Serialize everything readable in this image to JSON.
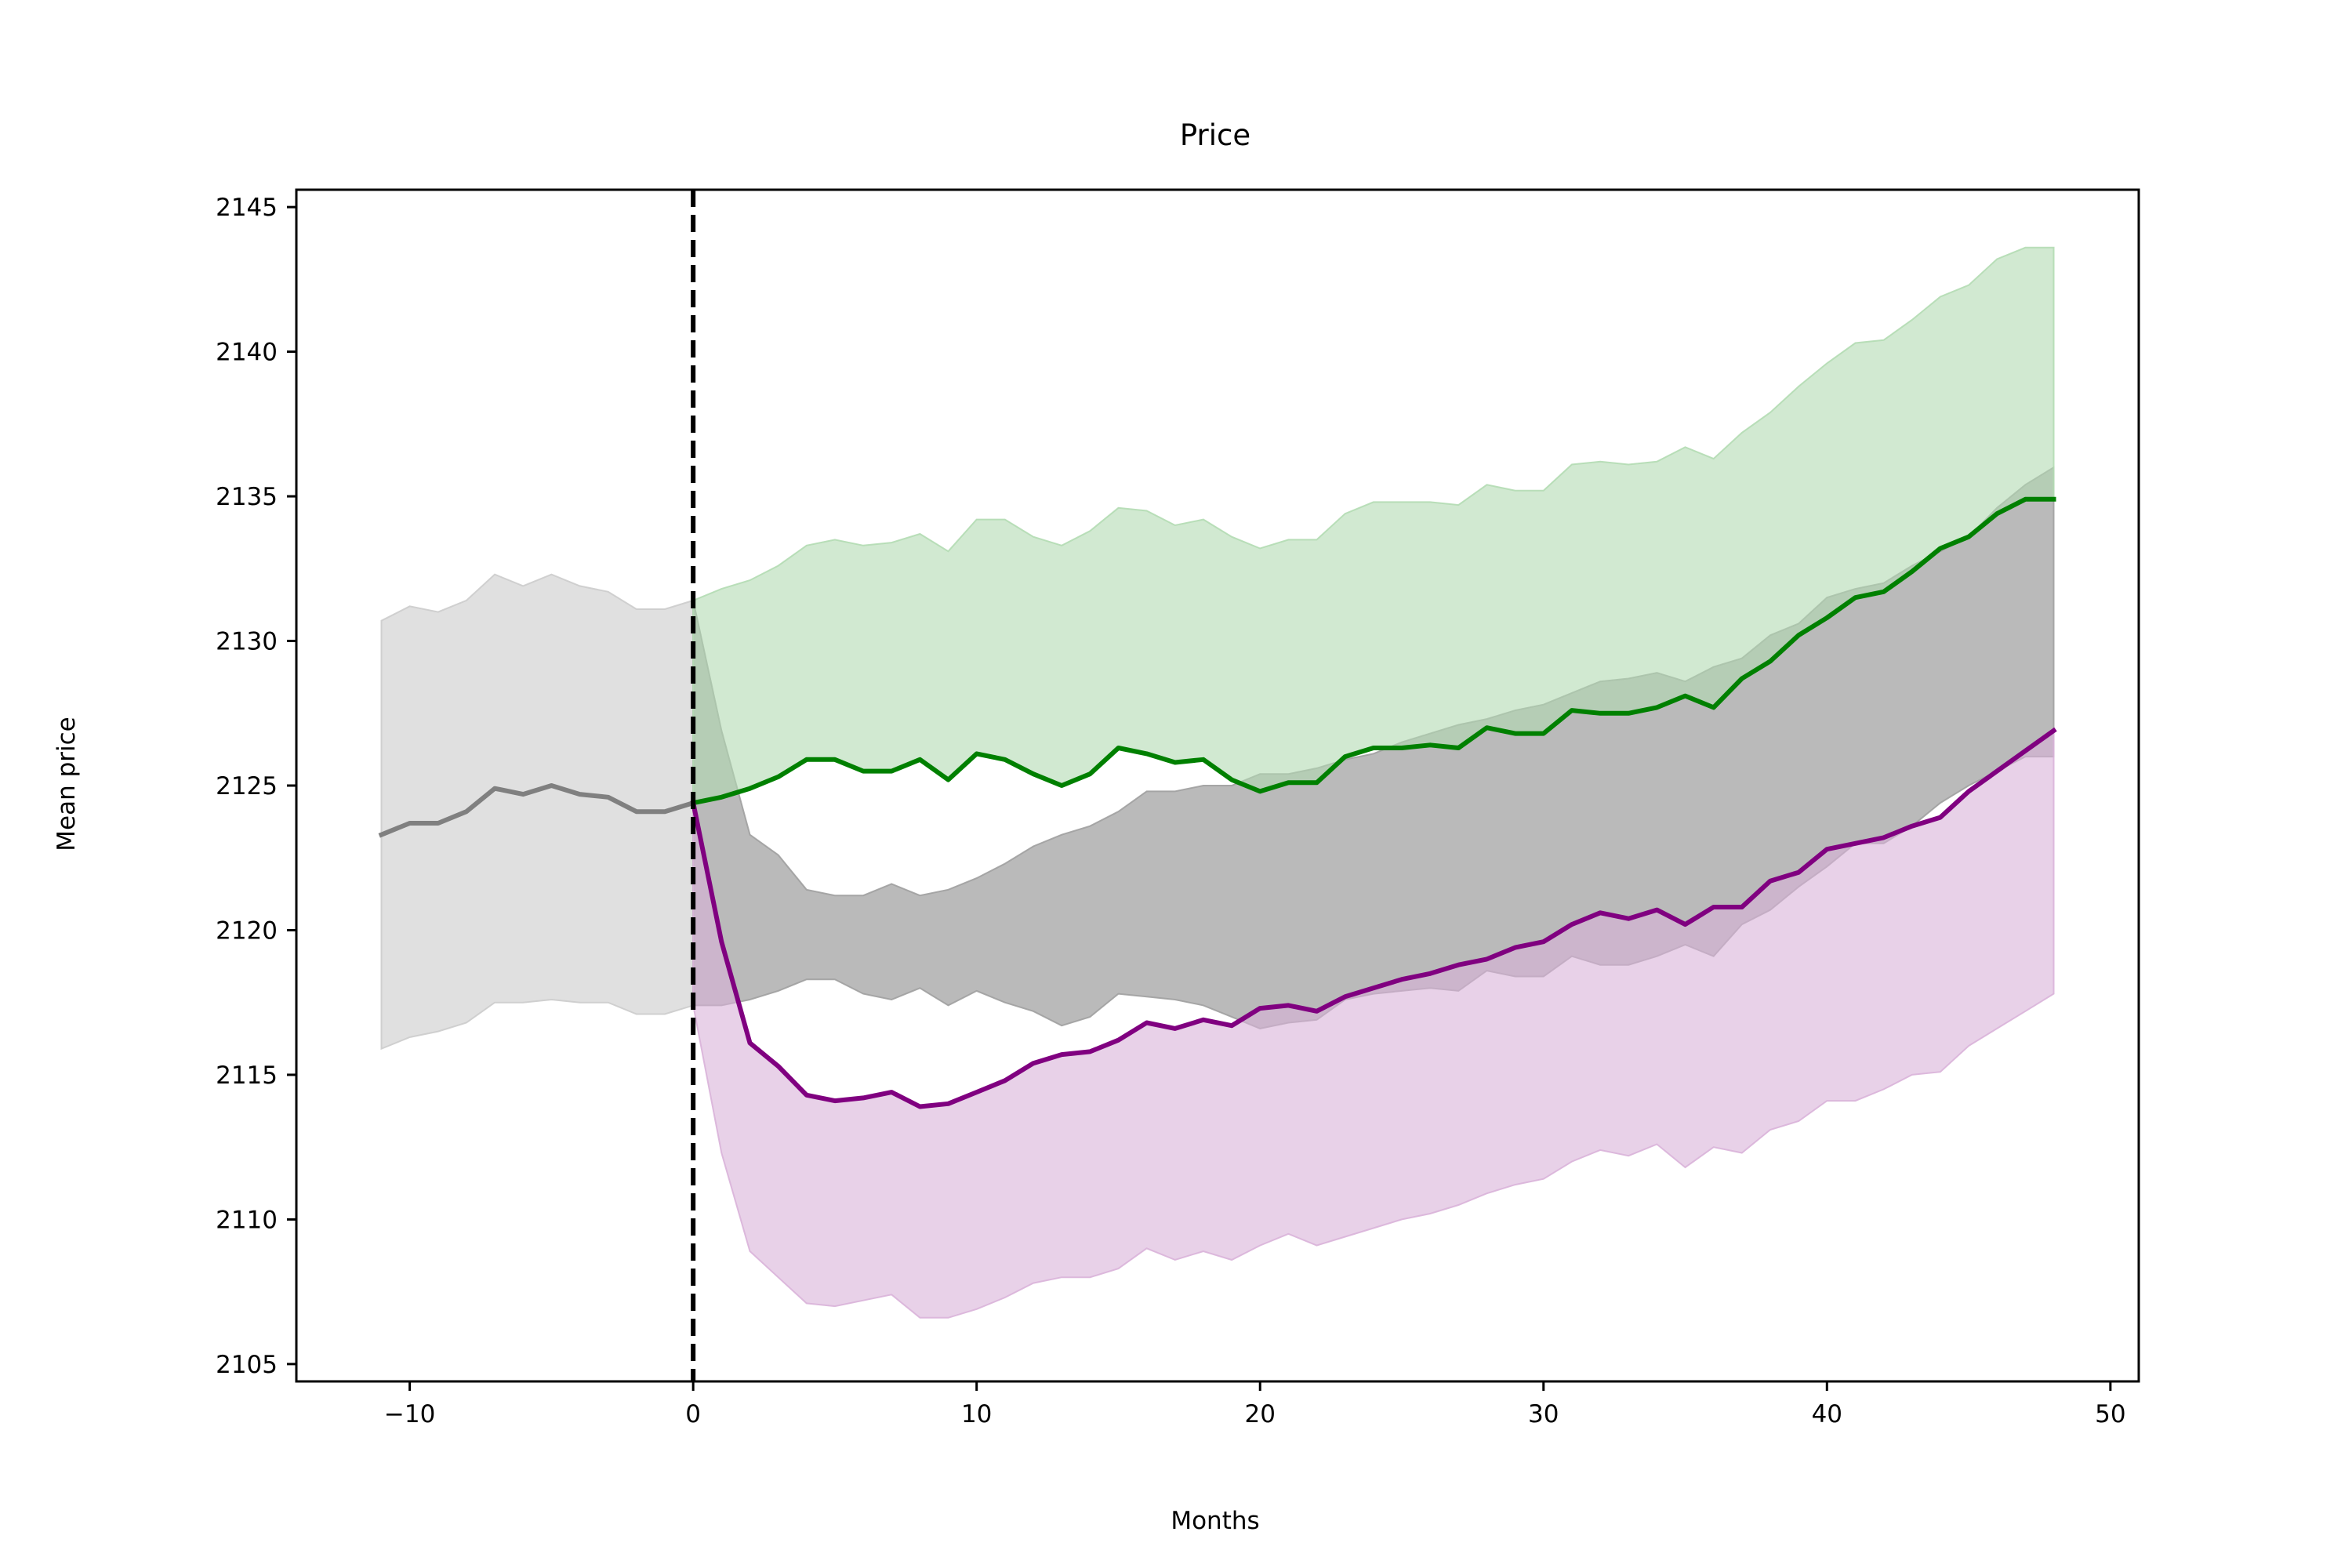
{
  "chart_data": {
    "type": "line",
    "title": "Price",
    "xlabel": "Months",
    "ylabel": "Mean price",
    "xlim": [
      -14,
      51
    ],
    "ylim": [
      2104.4,
      2145.6
    ],
    "xticks": [
      -10,
      0,
      10,
      20,
      30,
      40,
      50
    ],
    "xtick_labels": [
      "−10",
      "0",
      "10",
      "20",
      "30",
      "40",
      "50"
    ],
    "yticks": [
      2105,
      2110,
      2115,
      2120,
      2125,
      2130,
      2135,
      2140,
      2145
    ],
    "ytick_labels": [
      "2105",
      "2110",
      "2115",
      "2120",
      "2125",
      "2130",
      "2135",
      "2140",
      "2145"
    ],
    "legend": "none",
    "grid": false,
    "vline": {
      "x": 0,
      "style": "dashed",
      "color": "#000000"
    },
    "series": [
      {
        "color": "#808080",
        "fill_color": "#cccccc",
        "x": [
          -11,
          -10,
          -9,
          -8,
          -7,
          -6,
          -5,
          -4,
          -3,
          -2,
          -1,
          0
        ],
        "y": [
          2123.3,
          2123.7,
          2123.7,
          2124.1,
          2124.9,
          2124.7,
          2125.0,
          2124.7,
          2124.6,
          2124.1,
          2124.1,
          2124.4
        ],
        "upper": [
          2130.7,
          2131.2,
          2131.0,
          2131.4,
          2132.3,
          2131.9,
          2132.3,
          2131.9,
          2131.7,
          2131.1,
          2131.1,
          2131.4
        ],
        "lower": [
          2115.9,
          2116.3,
          2116.5,
          2116.8,
          2117.5,
          2117.5,
          2117.6,
          2117.5,
          2117.5,
          2117.1,
          2117.1,
          2117.4
        ]
      },
      {
        "color": "#808080",
        "fill_color": "#a0a0a0",
        "x": [
          0,
          1,
          2,
          3,
          4,
          5,
          6,
          7,
          8,
          9,
          10,
          11,
          12,
          13,
          14,
          15,
          16,
          17,
          18,
          19,
          20,
          21,
          22,
          23,
          24,
          25,
          26,
          27,
          28,
          29,
          30,
          31,
          32,
          33,
          34,
          35,
          36,
          37,
          38,
          39,
          40,
          41,
          42,
          43,
          44,
          45,
          46,
          47,
          48
        ],
        "upper": [
          2131.4,
          2126.9,
          2123.3,
          2122.6,
          2121.4,
          2121.2,
          2121.2,
          2121.6,
          2121.2,
          2121.4,
          2121.8,
          2122.3,
          2122.9,
          2123.3,
          2123.6,
          2124.1,
          2124.8,
          2124.8,
          2125.0,
          2125.0,
          2125.4,
          2125.4,
          2125.6,
          2125.9,
          2126.1,
          2126.5,
          2126.8,
          2127.1,
          2127.3,
          2127.6,
          2127.8,
          2128.2,
          2128.6,
          2128.7,
          2128.9,
          2128.6,
          2129.1,
          2129.4,
          2130.2,
          2130.6,
          2131.5,
          2131.8,
          2132.0,
          2132.6,
          2133.1,
          2133.6,
          2134.6,
          2135.4,
          2136.0
        ],
        "lower": [
          2117.4,
          2117.4,
          2117.6,
          2117.9,
          2118.3,
          2118.3,
          2117.8,
          2117.6,
          2118.0,
          2117.4,
          2117.9,
          2117.5,
          2117.2,
          2116.7,
          2117.0,
          2117.8,
          2117.7,
          2117.6,
          2117.4,
          2117.0,
          2116.6,
          2116.8,
          2116.9,
          2117.6,
          2117.8,
          2117.9,
          2118.0,
          2117.9,
          2118.6,
          2118.4,
          2118.4,
          2119.1,
          2118.8,
          2118.8,
          2119.1,
          2119.5,
          2119.1,
          2120.2,
          2120.7,
          2121.5,
          2122.2,
          2123.0,
          2123.0,
          2123.6,
          2124.4,
          2125.0,
          2125.5,
          2126.0,
          2126.0
        ]
      },
      {
        "color": "#008000",
        "fill_color": "#b3dbb3",
        "x": [
          0,
          1,
          2,
          3,
          4,
          5,
          6,
          7,
          8,
          9,
          10,
          11,
          12,
          13,
          14,
          15,
          16,
          17,
          18,
          19,
          20,
          21,
          22,
          23,
          24,
          25,
          26,
          27,
          28,
          29,
          30,
          31,
          32,
          33,
          34,
          35,
          36,
          37,
          38,
          39,
          40,
          41,
          42,
          43,
          44,
          45,
          46,
          47,
          48
        ],
        "y": [
          2124.4,
          2124.6,
          2124.9,
          2125.3,
          2125.9,
          2125.9,
          2125.5,
          2125.5,
          2125.9,
          2125.2,
          2126.1,
          2125.9,
          2125.4,
          2125.0,
          2125.4,
          2126.3,
          2126.1,
          2125.8,
          2125.9,
          2125.2,
          2124.8,
          2125.1,
          2125.1,
          2126.0,
          2126.3,
          2126.3,
          2126.4,
          2126.3,
          2127.0,
          2126.8,
          2126.8,
          2127.6,
          2127.5,
          2127.5,
          2127.7,
          2128.1,
          2127.7,
          2128.7,
          2129.3,
          2130.2,
          2130.8,
          2131.5,
          2131.7,
          2132.4,
          2133.2,
          2133.6,
          2134.4,
          2134.9,
          2134.9
        ],
        "upper": [
          2131.4,
          2131.8,
          2132.1,
          2132.6,
          2133.3,
          2133.5,
          2133.3,
          2133.4,
          2133.7,
          2133.1,
          2134.2,
          2134.2,
          2133.6,
          2133.3,
          2133.8,
          2134.6,
          2134.5,
          2134.0,
          2134.2,
          2133.6,
          2133.2,
          2133.5,
          2133.5,
          2134.4,
          2134.8,
          2134.8,
          2134.8,
          2134.7,
          2135.4,
          2135.2,
          2135.2,
          2136.1,
          2136.2,
          2136.1,
          2136.2,
          2136.7,
          2136.3,
          2137.2,
          2137.9,
          2138.8,
          2139.6,
          2140.3,
          2140.4,
          2141.1,
          2141.9,
          2142.3,
          2143.2,
          2143.6,
          2143.6
        ]
      },
      {
        "color": "#800080",
        "fill_color": "#d9b3d9",
        "x": [
          0,
          1,
          2,
          3,
          4,
          5,
          6,
          7,
          8,
          9,
          10,
          11,
          12,
          13,
          14,
          15,
          16,
          17,
          18,
          19,
          20,
          21,
          22,
          23,
          24,
          25,
          26,
          27,
          28,
          29,
          30,
          31,
          32,
          33,
          34,
          35,
          36,
          37,
          38,
          39,
          40,
          41,
          42,
          43,
          44,
          45,
          46,
          47,
          48
        ],
        "y": [
          2124.4,
          2119.6,
          2116.1,
          2115.3,
          2114.3,
          2114.1,
          2114.2,
          2114.4,
          2113.9,
          2114.0,
          2114.4,
          2114.8,
          2115.4,
          2115.7,
          2115.8,
          2116.2,
          2116.8,
          2116.6,
          2116.9,
          2116.7,
          2117.3,
          2117.4,
          2117.2,
          2117.7,
          2118.0,
          2118.3,
          2118.5,
          2118.8,
          2119.0,
          2119.4,
          2119.6,
          2120.2,
          2120.6,
          2120.4,
          2120.7,
          2120.2,
          2120.8,
          2120.8,
          2121.7,
          2122.0,
          2122.8,
          2123.0,
          2123.2,
          2123.6,
          2123.9,
          2124.8,
          2125.5,
          2126.2,
          2126.9
        ],
        "lower": [
          2117.4,
          2112.3,
          2108.9,
          2108.0,
          2107.1,
          2107.0,
          2107.2,
          2107.4,
          2106.6,
          2106.6,
          2106.9,
          2107.3,
          2107.8,
          2108.0,
          2108.0,
          2108.3,
          2109.0,
          2108.6,
          2108.9,
          2108.6,
          2109.1,
          2109.5,
          2109.1,
          2109.4,
          2109.7,
          2110.0,
          2110.2,
          2110.5,
          2110.9,
          2111.2,
          2111.4,
          2112.0,
          2112.4,
          2112.2,
          2112.6,
          2111.8,
          2112.5,
          2112.3,
          2113.1,
          2113.4,
          2114.1,
          2114.1,
          2114.5,
          2115.0,
          2115.1,
          2116.0,
          2116.6,
          2117.2,
          2117.8
        ]
      }
    ]
  }
}
